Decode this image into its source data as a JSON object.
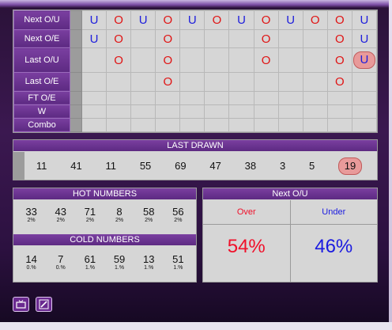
{
  "grid": {
    "rows": [
      {
        "label": "Next O/U",
        "cells": [
          "U",
          "O",
          "U",
          "O",
          "U",
          "O",
          "U",
          "O",
          "U",
          "O",
          "O",
          "U"
        ]
      },
      {
        "label": "Next O/E",
        "cells": [
          "U",
          "O",
          "",
          "O",
          "",
          "",
          "",
          "O",
          "",
          "",
          "O",
          "U"
        ]
      },
      {
        "label": "Last O/U",
        "cells": [
          "",
          "O",
          "",
          "O",
          "",
          "",
          "",
          "O",
          "",
          "",
          "O",
          "U"
        ]
      },
      {
        "label": "Last O/E",
        "cells": [
          "",
          "",
          "",
          "O",
          "",
          "",
          "",
          "",
          "",
          "",
          "O",
          ""
        ]
      },
      {
        "label": "FT O/E",
        "cells": [
          "",
          "",
          "",
          "",
          "",
          "",
          "",
          "",
          "",
          "",
          "",
          ""
        ]
      },
      {
        "label": "W",
        "cells": [
          "",
          "",
          "",
          "",
          "",
          "",
          "",
          "",
          "",
          "",
          "",
          ""
        ]
      },
      {
        "label": "Combo",
        "cells": [
          "",
          "",
          "",
          "",
          "",
          "",
          "",
          "",
          "",
          "",
          "",
          ""
        ]
      }
    ]
  },
  "last_drawn": {
    "title": "LAST DRAWN",
    "numbers": [
      "11",
      "41",
      "11",
      "55",
      "69",
      "47",
      "38",
      "3",
      "5",
      "19"
    ]
  },
  "hot": {
    "title": "HOT NUMBERS",
    "items": [
      {
        "n": "33",
        "p": "2%"
      },
      {
        "n": "43",
        "p": "2%"
      },
      {
        "n": "71",
        "p": "2%"
      },
      {
        "n": "8",
        "p": "2%"
      },
      {
        "n": "58",
        "p": "2%"
      },
      {
        "n": "56",
        "p": "2%"
      }
    ]
  },
  "cold": {
    "title": "COLD NUMBERS",
    "items": [
      {
        "n": "14",
        "p": "0.%"
      },
      {
        "n": "7",
        "p": "0.%"
      },
      {
        "n": "61",
        "p": "1.%"
      },
      {
        "n": "59",
        "p": "1.%"
      },
      {
        "n": "13",
        "p": "1.%"
      },
      {
        "n": "51",
        "p": "1.%"
      }
    ]
  },
  "next_ou": {
    "title": "Next O/U",
    "over_label": "Over",
    "under_label": "Under",
    "over_value": "54%",
    "under_value": "46%",
    "over_color": "#f0102a",
    "under_color": "#1a1ae0"
  },
  "toolbar": {
    "icons": [
      "tv-icon",
      "edit-icon"
    ]
  }
}
